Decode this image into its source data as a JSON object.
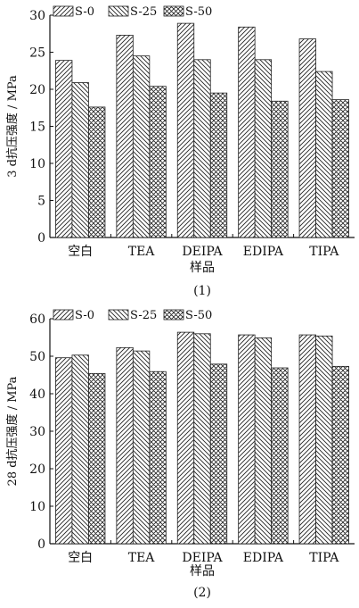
{
  "chart_data": [
    {
      "type": "bar",
      "title": "",
      "caption": "(1)",
      "xlabel": "样品",
      "ylabel": "3 d抗压强度 / MPa",
      "ylim": [
        0,
        30
      ],
      "yticks": [
        0,
        5,
        10,
        15,
        20,
        25,
        30
      ],
      "categories": [
        "空白",
        "TEA",
        "DEIPA",
        "EDIPA",
        "TIPA"
      ],
      "legend_position": "top-left",
      "grid": false,
      "series": [
        {
          "name": "S-0",
          "pattern": "hatch-forward",
          "values": [
            23.9,
            27.3,
            28.9,
            28.4,
            26.8
          ]
        },
        {
          "name": "S-25",
          "pattern": "hatch-backward",
          "values": [
            20.9,
            24.5,
            24.0,
            24.0,
            22.4
          ]
        },
        {
          "name": "S-50",
          "pattern": "crosshatch",
          "values": [
            17.6,
            20.4,
            19.5,
            18.4,
            18.6
          ]
        }
      ]
    },
    {
      "type": "bar",
      "title": "",
      "caption": "(2)",
      "xlabel": "样品",
      "ylabel": "28 d抗压强度 / MPa",
      "ylim": [
        0,
        60
      ],
      "yticks": [
        0,
        10,
        20,
        30,
        40,
        50,
        60
      ],
      "categories": [
        "空白",
        "TEA",
        "DEIPA",
        "EDIPA",
        "TIPA"
      ],
      "legend_position": "top-left",
      "grid": false,
      "series": [
        {
          "name": "S-0",
          "pattern": "hatch-forward",
          "values": [
            49.6,
            52.3,
            56.4,
            55.7,
            55.7
          ]
        },
        {
          "name": "S-25",
          "pattern": "hatch-backward",
          "values": [
            50.3,
            51.4,
            56.0,
            54.9,
            55.4
          ]
        },
        {
          "name": "S-50",
          "pattern": "crosshatch",
          "values": [
            45.4,
            45.9,
            47.9,
            46.9,
            47.3
          ]
        }
      ]
    }
  ]
}
